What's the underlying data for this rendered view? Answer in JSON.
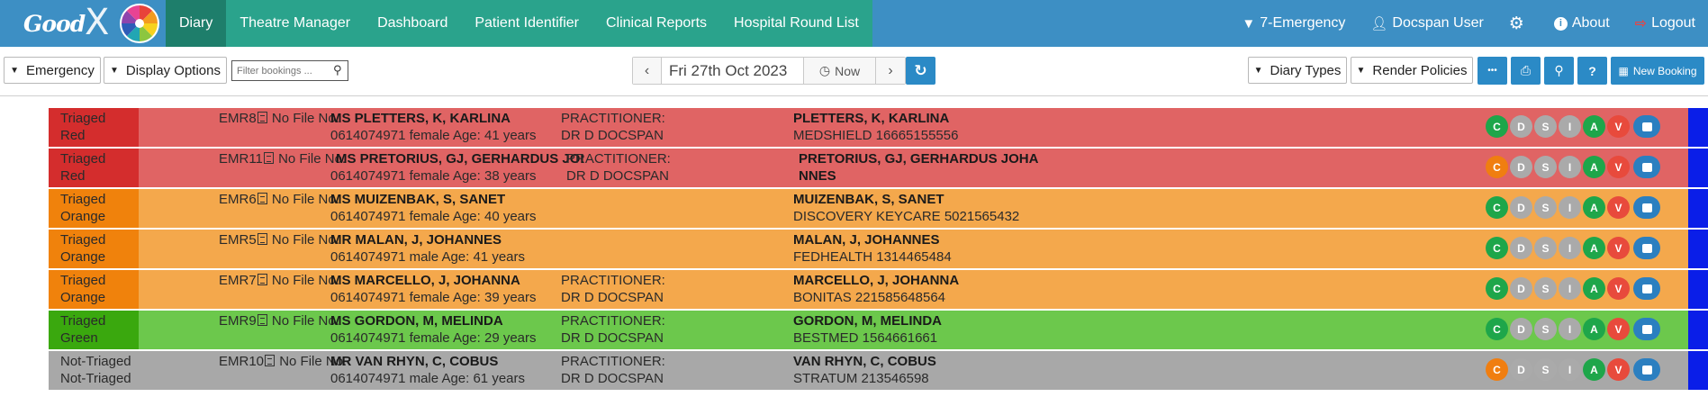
{
  "app": {
    "logo_text": "Good",
    "logo_x": "X"
  },
  "nav": {
    "tabs": [
      {
        "label": "Diary",
        "active": true
      },
      {
        "label": "Theatre Manager"
      },
      {
        "label": "Dashboard"
      },
      {
        "label": "Patient Identifier"
      },
      {
        "label": "Clinical Reports"
      },
      {
        "label": "Hospital Round List"
      }
    ],
    "emergency": "7-Emergency",
    "user": "Docspan User",
    "about": "About",
    "logout": "Logout"
  },
  "toolbar": {
    "emergency_label": "Emergency",
    "display_options_label": "Display Options",
    "filter_placeholder": "Filter bookings ...",
    "date": "Fri 27th Oct 2023",
    "now_label": "Now",
    "diary_types_label": "Diary Types",
    "render_policies_label": "Render Policies",
    "more_label": "•••",
    "new_booking_label": "New Booking"
  },
  "colors": {
    "red_status": "#d42d2d",
    "red_band": "#e06464",
    "orange_status": "#f0820c",
    "orange_band": "#f4a84c",
    "green_status": "#3aa80e",
    "green_band": "#6cc84c",
    "grey_status": "#a8a8a8",
    "grey_band": "#a8a8a8",
    "end_bar": "#0a1ee8"
  },
  "action_letters": [
    "C",
    "D",
    "S",
    "I",
    "A",
    "V"
  ],
  "bookings": [
    {
      "status1": "Triaged",
      "status2": "Red",
      "tone": "red",
      "emr": "EMR8",
      "file": "No File No.",
      "name": "MS PLETTERS, K, KARLINA",
      "details": "0614074971 female Age: 41 years",
      "prac1": "PRACTITIONER:",
      "prac2": "DR D DOCSPAN",
      "pname1": "PLETTERS, K, KARLINA",
      "pname2": "",
      "medaid": "MEDSHIELD 16665155556",
      "c_color": "#1ea64a"
    },
    {
      "status1": "Triaged",
      "status2": "Red",
      "tone": "red",
      "emr": "EMR11",
      "file": "No File No.",
      "name": "MS PRETORIUS, GJ, GERHARDUS JOI",
      "details": "0614074971 female Age: 38 years",
      "prac1": "PRACTITIONER:",
      "prac2": "DR D DOCSPAN",
      "pname1": "PRETORIUS, GJ, GERHARDUS JOHA",
      "pname2": "NNES",
      "medaid": "",
      "c_color": "#f07e10"
    },
    {
      "status1": "Triaged",
      "status2": "Orange",
      "tone": "orange",
      "emr": "EMR6",
      "file": "No File No.",
      "name": "MS MUIZENBAK, S, SANET",
      "details": "0614074971 female Age: 40 years",
      "prac1": "",
      "prac2": "",
      "pname1": "MUIZENBAK, S, SANET",
      "pname2": "",
      "medaid": "DISCOVERY KEYCARE 5021565432",
      "c_color": "#1ea64a"
    },
    {
      "status1": "Triaged",
      "status2": "Orange",
      "tone": "orange",
      "emr": "EMR5",
      "file": "No File No.",
      "name": "MR MALAN, J, JOHANNES",
      "details": "0614074971 male Age: 41 years",
      "prac1": "",
      "prac2": "",
      "pname1": "MALAN, J, JOHANNES",
      "pname2": "",
      "medaid": "FEDHEALTH 1314465484",
      "c_color": "#1ea64a"
    },
    {
      "status1": "Triaged",
      "status2": "Orange",
      "tone": "orange",
      "emr": "EMR7",
      "file": "No File No.",
      "name": "MS MARCELLO, J, JOHANNA",
      "details": "0614074971 female Age: 39 years",
      "prac1": "PRACTITIONER:",
      "prac2": "DR D DOCSPAN",
      "pname1": "MARCELLO, J, JOHANNA",
      "pname2": "",
      "medaid": "BONITAS 221585648564",
      "c_color": "#1ea64a"
    },
    {
      "status1": "Triaged",
      "status2": "Green",
      "tone": "green",
      "emr": "EMR9",
      "file": "No File No.",
      "name": "MS GORDON, M, MELINDA",
      "details": "0614074971 female Age: 29 years",
      "prac1": "PRACTITIONER:",
      "prac2": "DR D DOCSPAN",
      "pname1": "GORDON, M, MELINDA",
      "pname2": "",
      "medaid": "BESTMED 1564661661",
      "c_color": "#1ea64a"
    },
    {
      "status1": "Not-Triaged",
      "status2": "Not-Triaged",
      "tone": "grey",
      "emr": "EMR10",
      "file": "No File No.",
      "name": "MR VAN RHYN, C, COBUS",
      "details": "0614074971 male Age: 61 years",
      "prac1": "PRACTITIONER:",
      "prac2": "DR D DOCSPAN",
      "pname1": "VAN RHYN, C, COBUS",
      "pname2": "",
      "medaid": "STRATUM 213546598",
      "c_color": "#f07e10"
    }
  ]
}
